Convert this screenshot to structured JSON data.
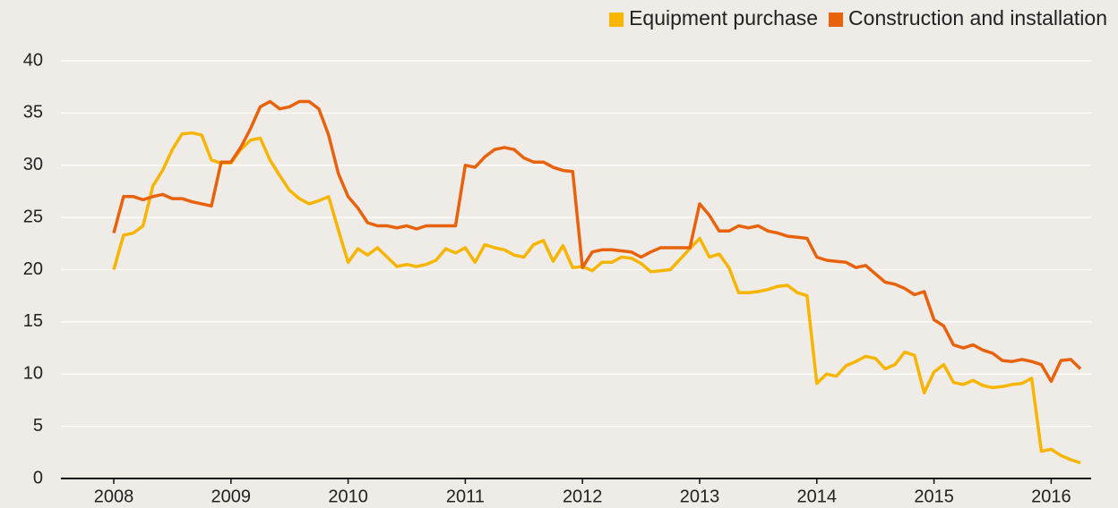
{
  "chart_data": {
    "type": "line",
    "categories": [
      "2008",
      null,
      null,
      null,
      null,
      null,
      null,
      null,
      null,
      null,
      null,
      null,
      "2009",
      null,
      null,
      null,
      null,
      null,
      null,
      null,
      null,
      null,
      null,
      null,
      "2010",
      null,
      null,
      null,
      null,
      null,
      null,
      null,
      null,
      null,
      null,
      null,
      "2011",
      null,
      null,
      null,
      null,
      null,
      null,
      null,
      null,
      null,
      null,
      null,
      "2012",
      null,
      null,
      null,
      null,
      null,
      null,
      null,
      null,
      null,
      null,
      null,
      "2013",
      null,
      null,
      null,
      null,
      null,
      null,
      null,
      null,
      null,
      null,
      null,
      "2014",
      null,
      null,
      null,
      null,
      null,
      null,
      null,
      null,
      null,
      null,
      null,
      "2015",
      null,
      null,
      null,
      null,
      null,
      null,
      null,
      null,
      null,
      null,
      null,
      "2016",
      null,
      null,
      null
    ],
    "series": [
      {
        "name": "Equipment purchase",
        "color": "#f7b500",
        "values": [
          20,
          23.3,
          23.5,
          24.2,
          28,
          29.5,
          31.5,
          33,
          33.1,
          32.9,
          30.5,
          30.2,
          30.2,
          31.5,
          32.4,
          32.6,
          30.5,
          29,
          27.6,
          26.8,
          26.3,
          26.6,
          27,
          23.8,
          20.7,
          22,
          21.4,
          22.1,
          21.2,
          20.3,
          20.5,
          20.3,
          20.5,
          20.9,
          22,
          21.6,
          22.1,
          20.7,
          22.4,
          22.1,
          21.9,
          21.4,
          21.2,
          22.4,
          22.8,
          20.8,
          22.3,
          20.2,
          20.3,
          19.9,
          20.7,
          20.7,
          21.2,
          21.1,
          20.6,
          19.8,
          19.9,
          20,
          21,
          22,
          23,
          21.2,
          21.5,
          20.2,
          17.8,
          17.8,
          17.9,
          18.1,
          18.4,
          18.5,
          17.8,
          17.5,
          9.1,
          10,
          9.8,
          10.8,
          11.2,
          11.7,
          11.5,
          10.5,
          10.9,
          12.1,
          11.8,
          8.2,
          10.2,
          10.9,
          9.2,
          9,
          9.4,
          8.9,
          8.7,
          8.8,
          9,
          9.1,
          9.6,
          2.6,
          2.8,
          2.2,
          1.8,
          1.5
        ]
      },
      {
        "name": "Construction and installation",
        "color": "#e8620c",
        "values": [
          23.5,
          27,
          27,
          26.7,
          27,
          27.2,
          26.8,
          26.8,
          26.5,
          26.3,
          26.1,
          30.3,
          30.3,
          31.7,
          33.5,
          35.6,
          36.1,
          35.4,
          35.6,
          36.1,
          36.1,
          35.4,
          32.9,
          29.2,
          27,
          25.9,
          24.5,
          24.2,
          24.2,
          24,
          24.2,
          23.9,
          24.2,
          24.2,
          24.2,
          24.2,
          30,
          29.8,
          30.8,
          31.5,
          31.7,
          31.5,
          30.7,
          30.3,
          30.3,
          29.8,
          29.5,
          29.4,
          20.2,
          21.7,
          21.9,
          21.9,
          21.8,
          21.7,
          21.2,
          21.7,
          22.1,
          22.1,
          22.1,
          22.1,
          26.3,
          25.2,
          23.7,
          23.7,
          24.2,
          24,
          24.2,
          23.7,
          23.5,
          23.2,
          23.1,
          23,
          21.2,
          20.9,
          20.8,
          20.7,
          20.2,
          20.4,
          19.6,
          18.8,
          18.6,
          18.2,
          17.6,
          17.9,
          15.2,
          14.6,
          12.8,
          12.5,
          12.8,
          12.3,
          12,
          11.3,
          11.2,
          11.4,
          11.2,
          10.9,
          9.3,
          11.3,
          11.4,
          10.5
        ]
      }
    ],
    "ylim": [
      0,
      40
    ],
    "yticks": [
      0,
      5,
      10,
      15,
      20,
      25,
      30,
      35,
      40
    ],
    "grid": true,
    "legend": "top-right"
  }
}
